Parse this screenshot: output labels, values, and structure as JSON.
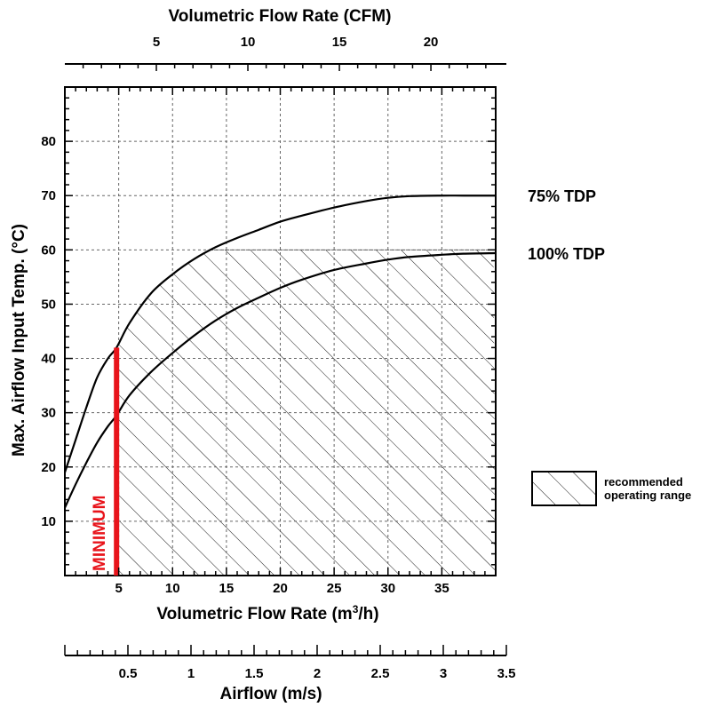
{
  "chart_data": {
    "type": "line",
    "xlabel": "Volumetric Flow Rate (m³/h)",
    "ylabel": "Max. Airflow Input Temp. (°C)",
    "xlim": [
      0,
      40
    ],
    "ylim": [
      0,
      90
    ],
    "x_ticks": [
      5,
      10,
      15,
      20,
      25,
      30,
      35
    ],
    "y_ticks": [
      10,
      20,
      30,
      40,
      50,
      60,
      70,
      80
    ],
    "grid": true,
    "top_axis": {
      "label": "Volumetric Flow Rate (CFM)",
      "ticks": [
        5,
        10,
        15,
        20
      ],
      "range": [
        0,
        23.54
      ]
    },
    "bottom_axis2": {
      "label": "Airflow (m/s)",
      "ticks": [
        "0.5",
        "1",
        "1.5",
        "2",
        "2.5",
        "3",
        "3.5"
      ],
      "range": [
        0,
        3.5
      ]
    },
    "series": [
      {
        "name": "75% TDP",
        "x": [
          0,
          1,
          2,
          3,
          4,
          4.8,
          6,
          8,
          10,
          12,
          14,
          16,
          18,
          20,
          22,
          25,
          28,
          30,
          32,
          35,
          37,
          40
        ],
        "y": [
          19,
          25,
          31,
          36.5,
          40,
          42,
          46.5,
          52,
          55.5,
          58.3,
          60.5,
          62.2,
          63.7,
          65.2,
          66.3,
          67.8,
          69,
          69.6,
          69.9,
          70,
          70,
          70
        ]
      },
      {
        "name": "100% TDP",
        "x": [
          0,
          1,
          2,
          3,
          4,
          4.8,
          6,
          8,
          10,
          12,
          14,
          16,
          18,
          20,
          22,
          25,
          28,
          30,
          32,
          35,
          37,
          40
        ],
        "y": [
          12.5,
          16.8,
          20.8,
          24.5,
          27.5,
          29.5,
          33.2,
          37.5,
          41,
          44.2,
          47,
          49.3,
          51.2,
          53,
          54.5,
          56.3,
          57.5,
          58.2,
          58.7,
          59.1,
          59.3,
          59.4
        ]
      }
    ],
    "recommended_range": {
      "min_x": 4.8,
      "max_y": 60
    },
    "minimum_label": "MINIMUM",
    "minimum_x": 4.8,
    "legend": {
      "label_line1": "recommended",
      "label_line2": "operating range",
      "position": "right"
    },
    "colors": {
      "minimum": "#e8141b",
      "curves": "#000000",
      "grid": "#666666"
    }
  }
}
